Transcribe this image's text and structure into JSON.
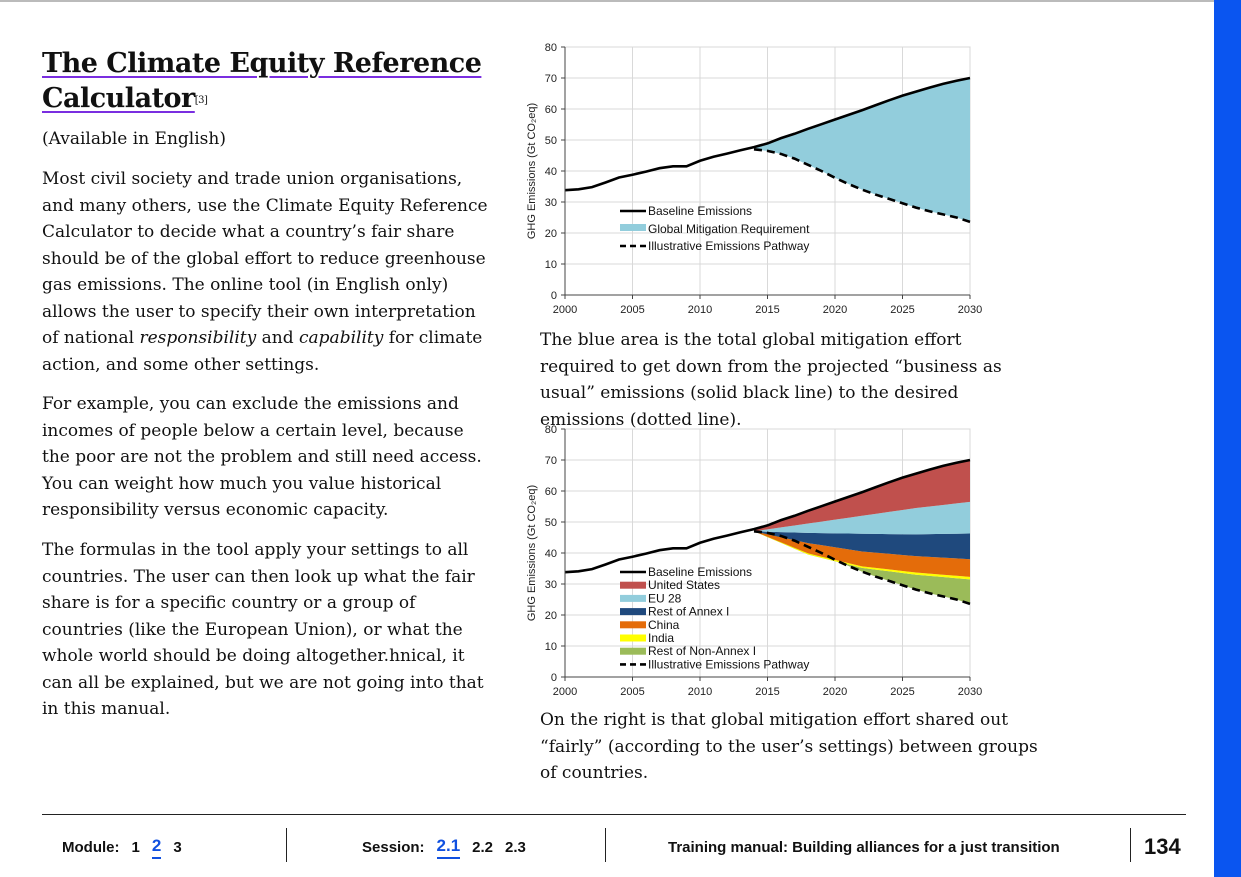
{
  "title": {
    "line1": "The Climate Equity Reference",
    "line2": "Calculator",
    "ref": "[3]"
  },
  "availability": "(Available in English)",
  "paragraphs": {
    "p1_a": "Most civil society and trade union organisations, and many others, use the Climate Equity Reference Calculator to decide what a country’s fair share should be of the global effort to reduce greenhouse gas emissions. The online tool (in English only) allows the user to specify their own interpretation of national ",
    "p1_em1": "responsibility",
    "p1_b": " and ",
    "p1_em2": "capability",
    "p1_c": " for climate action, and some other settings.",
    "p2": "For example, you can exclude the emissions and incomes of people below a certain level, because the poor are not the problem and still need access. You can weight how much you value historical responsibility versus economic capacity.",
    "p3": "The formulas in the tool apply your settings to all countries. The user can then look up what the fair share is for a specific country or a group of countries (like the European Union), or what the whole world should be doing altogether.hnical, it can all be explained, but we are not going into that in this manual."
  },
  "captions": {
    "chart1": "The blue area is the total global mitigation effort required to get down from the projected “business as usual” emissions (solid black line) to the desired emissions (dotted line).",
    "chart2": "On the right is that global mitigation effort shared out “fairly” (according to the user’s settings) between groups of countries."
  },
  "chart_data": [
    {
      "type": "area",
      "ylabel": "GHG Emissions (Gt CO₂eq)",
      "xlim": [
        2000,
        2030
      ],
      "ylim": [
        0,
        80
      ],
      "xticks": [
        2000,
        2005,
        2010,
        2015,
        2020,
        2025,
        2030
      ],
      "yticks": [
        0,
        10,
        20,
        30,
        40,
        50,
        60,
        70,
        80
      ],
      "grid": true,
      "legend": "center",
      "legend_entries": [
        "Baseline Emissions",
        "Global Mitigation Requirement",
        "Illustrative Emissions Pathway"
      ],
      "baseline": {
        "x": [
          2000,
          2001,
          2002,
          2003,
          2004,
          2005,
          2006,
          2007,
          2008,
          2009,
          2010,
          2011,
          2012,
          2013,
          2014,
          2015,
          2016,
          2017,
          2018,
          2019,
          2020,
          2021,
          2022,
          2023,
          2024,
          2025,
          2026,
          2027,
          2028,
          2029,
          2030
        ],
        "y": [
          33.8,
          34.1,
          34.8,
          36.3,
          37.9,
          38.8,
          39.8,
          40.9,
          41.5,
          41.5,
          43.3,
          44.6,
          45.6,
          46.7,
          47.7,
          48.9,
          50.6,
          52.0,
          53.6,
          55.1,
          56.6,
          58.1,
          59.6,
          61.2,
          62.8,
          64.3,
          65.6,
          66.9,
          68.1,
          69.1,
          70.0
        ]
      },
      "pathway": {
        "x": [
          2014,
          2015,
          2016,
          2017,
          2018,
          2019,
          2020,
          2021,
          2022,
          2023,
          2024,
          2025,
          2026,
          2027,
          2028,
          2029,
          2030
        ],
        "y": [
          47.0,
          46.5,
          45.5,
          44.0,
          42.0,
          40.0,
          37.8,
          35.8,
          34.0,
          32.4,
          31.0,
          29.6,
          28.2,
          27.0,
          26.0,
          25.0,
          23.6
        ]
      },
      "series_colors": {
        "baseline": "#000000",
        "requirement": "#92cddc",
        "pathway": "#000000"
      }
    },
    {
      "type": "area",
      "ylabel": "GHG Emissions (Gt CO₂eq)",
      "xlim": [
        2000,
        2030
      ],
      "ylim": [
        0,
        80
      ],
      "xticks": [
        2000,
        2005,
        2010,
        2015,
        2020,
        2025,
        2030
      ],
      "yticks": [
        0,
        10,
        20,
        30,
        40,
        50,
        60,
        70,
        80
      ],
      "grid": true,
      "legend": "bottom-left",
      "legend_entries": [
        "Baseline Emissions",
        "United States",
        "EU 28",
        "Rest of Annex I",
        "China",
        "India",
        "Rest of Non-Annex I",
        "Illustrative Emissions Pathway"
      ],
      "split_x": [
        2014,
        2018,
        2022,
        2026,
        2030
      ],
      "bands_upper": {
        "rest_of_non_annex_i": [
          47.0,
          39.5,
          35.2,
          33.0,
          31.5
        ],
        "india": [
          47.0,
          39.9,
          35.7,
          33.7,
          32.3
        ],
        "china": [
          47.0,
          43.2,
          40.5,
          39.0,
          38.0
        ],
        "rest_of_annex_i": [
          47.0,
          46.5,
          46.2,
          46.0,
          46.3
        ],
        "eu_28": [
          47.0,
          49.5,
          52.0,
          54.5,
          56.5
        ],
        "united_states": [
          47.0,
          53.6,
          59.6,
          65.6,
          70.0
        ]
      },
      "series_colors": {
        "united_states": "#c0504d",
        "eu_28": "#92cddc",
        "rest_of_annex_i": "#1f497d",
        "china": "#e46c0a",
        "india": "#ffff00",
        "rest_of_non_annex_i": "#9bbb59"
      }
    }
  ],
  "footer": {
    "module_label": "Module:",
    "modules": [
      "1",
      "2",
      "3"
    ],
    "session_label": "Session:",
    "sessions": [
      "2.1",
      "2.2",
      "2.3"
    ],
    "manual": "Training manual: Building alliances for a just transition",
    "page": "134"
  }
}
